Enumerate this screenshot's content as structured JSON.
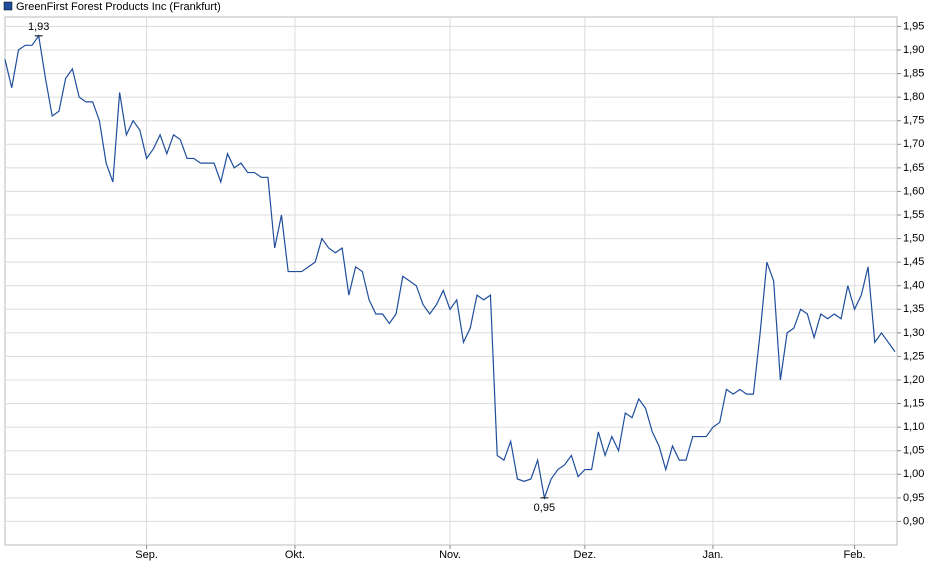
{
  "chart_data": {
    "type": "line",
    "categories": [
      null,
      null,
      null,
      null,
      null,
      null,
      null,
      null,
      null,
      null,
      null,
      null,
      null,
      null,
      null,
      null,
      null,
      null,
      null,
      null,
      null,
      "Sep.",
      null,
      null,
      null,
      null,
      null,
      null,
      null,
      null,
      null,
      null,
      null,
      null,
      null,
      null,
      null,
      null,
      null,
      null,
      null,
      null,
      null,
      "Okt.",
      null,
      null,
      null,
      null,
      null,
      null,
      null,
      null,
      null,
      null,
      null,
      null,
      null,
      null,
      null,
      null,
      null,
      null,
      null,
      null,
      null,
      null,
      "Nov.",
      null,
      null,
      null,
      null,
      null,
      null,
      null,
      null,
      null,
      null,
      null,
      null,
      null,
      null,
      null,
      null,
      null,
      null,
      null,
      "Dez.",
      null,
      null,
      null,
      null,
      null,
      null,
      null,
      null,
      null,
      null,
      null,
      null,
      null,
      null,
      null,
      null,
      null,
      null,
      "Jan.",
      null,
      null,
      null,
      null,
      null,
      null,
      null,
      null,
      null,
      null,
      null,
      null,
      null,
      null,
      null,
      null,
      null,
      null,
      null,
      null,
      "Feb.",
      null,
      null,
      null,
      null,
      null,
      null
    ],
    "series": [
      {
        "name": "GreenFirst Forest Products Inc (Frankfurt)",
        "color": "#1f4e9c",
        "values": [
          1.88,
          1.82,
          1.9,
          1.91,
          1.91,
          1.93,
          1.84,
          1.76,
          1.77,
          1.84,
          1.86,
          1.8,
          1.79,
          1.79,
          1.75,
          1.66,
          1.62,
          1.81,
          1.72,
          1.75,
          1.73,
          1.67,
          1.69,
          1.72,
          1.68,
          1.72,
          1.71,
          1.67,
          1.67,
          1.66,
          1.66,
          1.66,
          1.62,
          1.68,
          1.65,
          1.66,
          1.64,
          1.64,
          1.63,
          1.63,
          1.48,
          1.55,
          1.43,
          1.43,
          1.43,
          1.44,
          1.45,
          1.5,
          1.48,
          1.47,
          1.48,
          1.38,
          1.44,
          1.43,
          1.37,
          1.34,
          1.34,
          1.32,
          1.34,
          1.42,
          1.41,
          1.4,
          1.36,
          1.34,
          1.36,
          1.39,
          1.35,
          1.37,
          1.28,
          1.31,
          1.38,
          1.37,
          1.38,
          1.04,
          1.03,
          1.07,
          0.99,
          0.985,
          0.99,
          1.03,
          0.95,
          0.99,
          1.01,
          1.02,
          1.04,
          0.995,
          1.01,
          1.01,
          1.09,
          1.04,
          1.08,
          1.05,
          1.13,
          1.12,
          1.16,
          1.14,
          1.09,
          1.06,
          1.01,
          1.06,
          1.03,
          1.03,
          1.08,
          1.08,
          1.08,
          1.1,
          1.11,
          1.18,
          1.17,
          1.18,
          1.17,
          1.17,
          1.3,
          1.45,
          1.41,
          1.2,
          1.3,
          1.31,
          1.35,
          1.34,
          1.29,
          1.34,
          1.33,
          1.34,
          1.33,
          1.4,
          1.35,
          1.38,
          1.44,
          1.28,
          1.3,
          1.28,
          1.26
        ]
      }
    ],
    "annotations": [
      {
        "label": "1,93",
        "value": 1.93
      },
      {
        "label": "0,95",
        "value": 0.95
      }
    ],
    "ylim": [
      0.85,
      1.97
    ],
    "yticks": [
      {
        "value": 0.9,
        "label": "0,90"
      },
      {
        "value": 0.95,
        "label": "0,95"
      },
      {
        "value": 1.0,
        "label": "1,00"
      },
      {
        "value": 1.05,
        "label": "1,05"
      },
      {
        "value": 1.1,
        "label": "1,10"
      },
      {
        "value": 1.15,
        "label": "1,15"
      },
      {
        "value": 1.2,
        "label": "1,20"
      },
      {
        "value": 1.25,
        "label": "1,25"
      },
      {
        "value": 1.3,
        "label": "1,30"
      },
      {
        "value": 1.35,
        "label": "1,35"
      },
      {
        "value": 1.4,
        "label": "1,40"
      },
      {
        "value": 1.45,
        "label": "1,45"
      },
      {
        "value": 1.5,
        "label": "1,50"
      },
      {
        "value": 1.55,
        "label": "1,55"
      },
      {
        "value": 1.6,
        "label": "1,60"
      },
      {
        "value": 1.65,
        "label": "1,65"
      },
      {
        "value": 1.7,
        "label": "1,70"
      },
      {
        "value": 1.75,
        "label": "1,75"
      },
      {
        "value": 1.8,
        "label": "1,80"
      },
      {
        "value": 1.85,
        "label": "1,85"
      },
      {
        "value": 1.9,
        "label": "1,90"
      },
      {
        "value": 1.95,
        "label": "1,95"
      }
    ],
    "grid": true
  }
}
